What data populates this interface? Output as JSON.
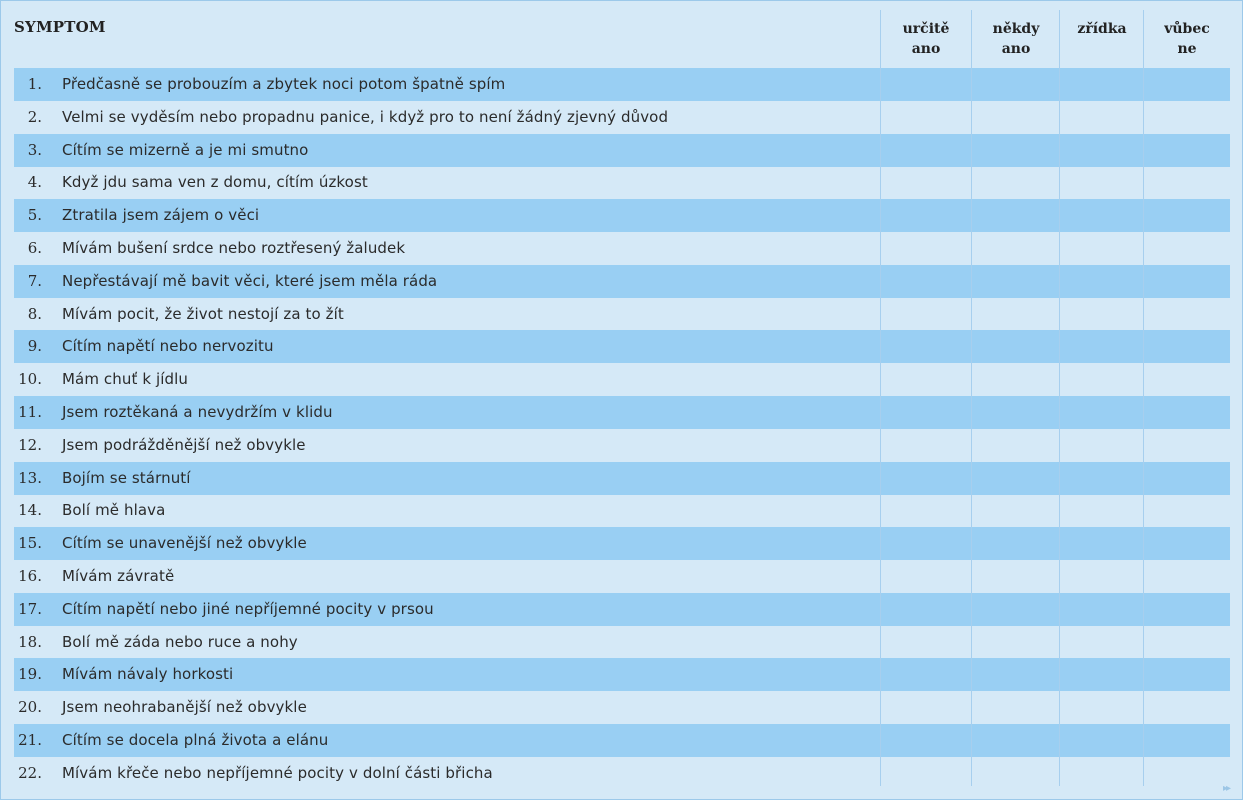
{
  "table": {
    "symptom_header": "SYMPTOM",
    "columns": [
      {
        "line1": "určitě",
        "line2": "ano"
      },
      {
        "line1": "někdy",
        "line2": "ano"
      },
      {
        "line1": "zřídka",
        "line2": ""
      },
      {
        "line1": "vůbec",
        "line2": "ne"
      }
    ],
    "rows": [
      {
        "num": "1.",
        "text": "Předčasně se probouzím a zbytek noci potom špatně spím"
      },
      {
        "num": "2.",
        "text": "Velmi se vyděsím nebo propadnu panice, i když pro to není žádný zjevný důvod"
      },
      {
        "num": "3.",
        "text": "Cítím se mizerně a je mi smutno"
      },
      {
        "num": "4.",
        "text": "Když jdu sama ven z domu, cítím úzkost"
      },
      {
        "num": "5.",
        "text": "Ztratila jsem zájem o věci"
      },
      {
        "num": "6.",
        "text": "Mívám bušení srdce nebo roztřesený žaludek"
      },
      {
        "num": "7.",
        "text": "Nepřestávají mě bavit věci, které jsem měla ráda"
      },
      {
        "num": "8.",
        "text": "Mívám pocit, že život nestojí za to žít"
      },
      {
        "num": "9.",
        "text": "Cítím napětí nebo nervozitu"
      },
      {
        "num": "10.",
        "text": "Mám chuť k jídlu"
      },
      {
        "num": "11.",
        "text": "Jsem roztěkaná a nevydržím v klidu"
      },
      {
        "num": "12.",
        "text": "Jsem podrážděnější než obvykle"
      },
      {
        "num": "13.",
        "text": "Bojím se stárnutí"
      },
      {
        "num": "14.",
        "text": "Bolí mě hlava"
      },
      {
        "num": "15.",
        "text": "Cítím se unavenější než obvykle"
      },
      {
        "num": "16.",
        "text": "Mívám závratě"
      },
      {
        "num": "17.",
        "text": "Cítím napětí nebo jiné nepříjemné pocity v prsou"
      },
      {
        "num": "18.",
        "text": "Bolí mě záda nebo ruce a nohy"
      },
      {
        "num": "19.",
        "text": "Mívám návaly horkosti"
      },
      {
        "num": "20.",
        "text": "Jsem neohrabanější než obvykle"
      },
      {
        "num": "21.",
        "text": "Cítím se docela plná života a elánu"
      },
      {
        "num": "22.",
        "text": "Mívám křeče nebo nepříjemné pocity v dolní části břicha"
      }
    ]
  },
  "colors": {
    "background": "#d5e9f7",
    "stripe": "#99cff3",
    "grid": "#a7cfee"
  },
  "footer": {
    "arrow": "▸▸"
  }
}
